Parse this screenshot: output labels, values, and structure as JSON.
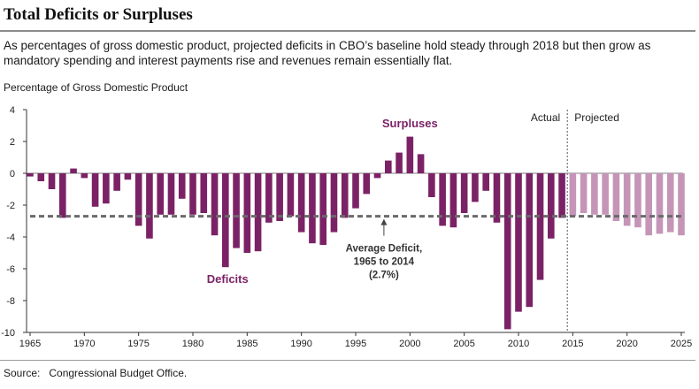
{
  "header": {
    "title": "Total Deficits or Surpluses",
    "subtitle": "As percentages of gross domestic product, projected deficits in CBO’s baseline hold steady through 2018 but then grow as mandatory spending and interest payments rise and revenues remain essentially flat."
  },
  "footer": {
    "source_label": "Source:",
    "source_text": "Congressional Budget Office."
  },
  "colors": {
    "actual": "#7b2266",
    "projected": "#c595b8",
    "surpluses_label": "#7b2266",
    "deficits_label": "#7b2266",
    "average_line": "#6a6a6a"
  },
  "chart_data": {
    "type": "bar",
    "title": "Total Deficits or Surpluses",
    "ylabel": "Percentage of Gross Domestic Product",
    "xlabel": "",
    "ylim": [
      -10,
      4
    ],
    "yticks": [
      4,
      2,
      0,
      -2,
      -4,
      -6,
      -8,
      -10
    ],
    "xlim": [
      1965,
      2025
    ],
    "xticks": [
      1965,
      1970,
      1975,
      1980,
      1985,
      1990,
      1995,
      2000,
      2005,
      2010,
      2015,
      2020,
      2025
    ],
    "grid": false,
    "divider_year": 2014.5,
    "period_labels": {
      "actual": "Actual",
      "projected": "Projected"
    },
    "series": [
      {
        "name": "Actual",
        "years": [
          1965,
          1966,
          1967,
          1968,
          1969,
          1970,
          1971,
          1972,
          1973,
          1974,
          1975,
          1976,
          1977,
          1978,
          1979,
          1980,
          1981,
          1982,
          1983,
          1984,
          1985,
          1986,
          1987,
          1988,
          1989,
          1990,
          1991,
          1992,
          1993,
          1994,
          1995,
          1996,
          1997,
          1998,
          1999,
          2000,
          2001,
          2002,
          2003,
          2004,
          2005,
          2006,
          2007,
          2008,
          2009,
          2010,
          2011,
          2012,
          2013,
          2014
        ],
        "values": [
          -0.2,
          -0.5,
          -1.0,
          -2.8,
          0.3,
          -0.3,
          -2.1,
          -1.9,
          -1.1,
          -0.4,
          -3.3,
          -4.1,
          -2.6,
          -2.6,
          -1.6,
          -2.6,
          -2.5,
          -3.9,
          -5.9,
          -4.7,
          -5.0,
          -4.9,
          -3.1,
          -3.0,
          -2.7,
          -3.7,
          -4.4,
          -4.5,
          -3.7,
          -2.8,
          -2.2,
          -1.3,
          -0.3,
          0.8,
          1.3,
          2.3,
          1.2,
          -1.5,
          -3.3,
          -3.4,
          -2.5,
          -1.8,
          -1.1,
          -3.1,
          -9.8,
          -8.7,
          -8.4,
          -6.7,
          -4.1,
          -2.8
        ]
      },
      {
        "name": "Projected",
        "years": [
          2015,
          2016,
          2017,
          2018,
          2019,
          2020,
          2021,
          2022,
          2023,
          2024,
          2025
        ],
        "values": [
          -2.7,
          -2.5,
          -2.6,
          -2.6,
          -3.0,
          -3.3,
          -3.4,
          -3.9,
          -3.8,
          -3.7,
          -3.9
        ]
      }
    ],
    "average": {
      "value": -2.7,
      "label_lines": [
        "Average Deficit,",
        "1965 to 2014",
        "(2.7%)"
      ]
    },
    "annotations": {
      "surpluses": "Surpluses",
      "deficits": "Deficits"
    }
  }
}
